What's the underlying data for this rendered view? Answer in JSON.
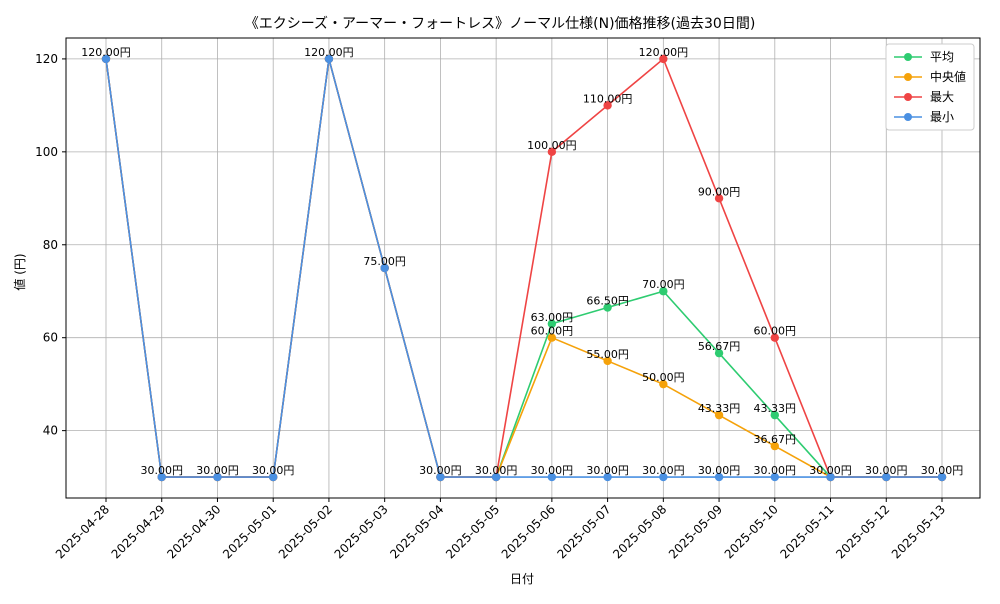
{
  "chart_data": {
    "type": "line",
    "title": "《エクシーズ・アーマー・フォートレス》ノーマル仕様(N)価格推移(過去30日間)",
    "xlabel": "日付",
    "ylabel": "値 (円)",
    "x": [
      "2025-04-28",
      "2025-04-29",
      "2025-04-30",
      "2025-05-01",
      "2025-05-02",
      "2025-05-03",
      "2025-05-04",
      "2025-05-05",
      "2025-05-06",
      "2025-05-07",
      "2025-05-08",
      "2025-05-09",
      "2025-05-10",
      "2025-05-11",
      "2025-05-12",
      "2025-05-13"
    ],
    "ylim": [
      25.5,
      124.5
    ],
    "yticks": [
      40,
      60,
      80,
      100,
      120
    ],
    "grid": true,
    "legend_position": "top-right",
    "label_suffix": "円",
    "series": [
      {
        "name": "平均",
        "color": "#2ecc71",
        "values": [
          120,
          30,
          30,
          30,
          120,
          75,
          30,
          30,
          63.0,
          66.5,
          70.0,
          56.67,
          43.33,
          30,
          30,
          30
        ],
        "label_days": [
          8,
          9,
          10,
          11,
          12
        ]
      },
      {
        "name": "中央値",
        "color": "#f5a20a",
        "values": [
          120,
          30,
          30,
          30,
          120,
          75,
          30,
          30,
          60.0,
          55.0,
          50.0,
          43.33,
          36.67,
          30,
          30,
          30
        ],
        "label_days": [
          8,
          9,
          10,
          11,
          12
        ]
      },
      {
        "name": "最大",
        "color": "#ef4444",
        "values": [
          120,
          30,
          30,
          30,
          120,
          75,
          30,
          30,
          100.0,
          110.0,
          120.0,
          90.0,
          60.0,
          30,
          30,
          30
        ],
        "label_days": [
          8,
          9,
          10,
          11,
          12
        ]
      },
      {
        "name": "最小",
        "color": "#4a90e2",
        "values": [
          120,
          30,
          30,
          30,
          120,
          75,
          30,
          30,
          30,
          30,
          30,
          30,
          30,
          30,
          30,
          30
        ],
        "label_days": [
          0,
          1,
          2,
          3,
          4,
          5,
          6,
          7,
          8,
          9,
          10,
          11,
          12,
          13,
          14,
          15
        ]
      }
    ]
  }
}
